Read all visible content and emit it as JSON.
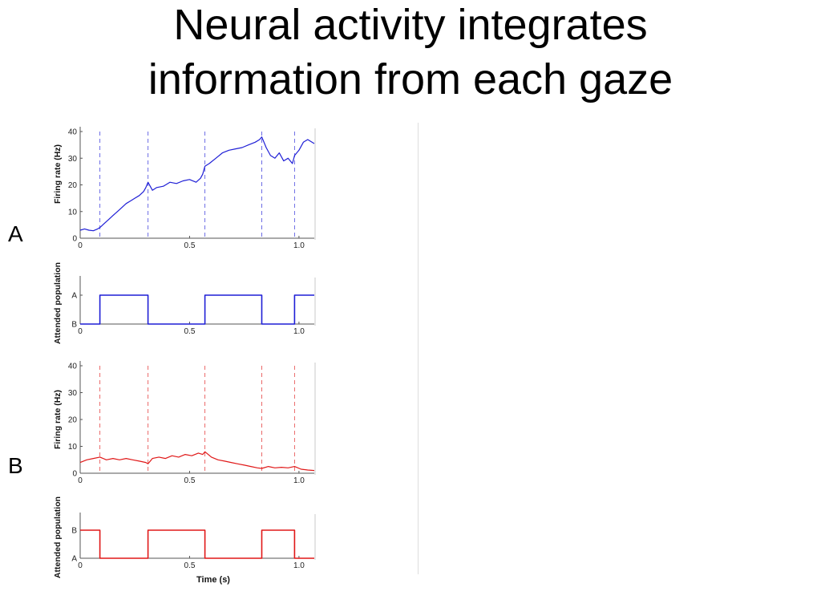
{
  "slide": {
    "title_line1": "Neural activity integrates",
    "title_line2": "information from each gaze",
    "panel_a_label": "A",
    "panel_b_label": "B"
  },
  "chart_data": [
    {
      "id": "A-rate",
      "type": "line",
      "color": "#1f1fd6",
      "xlim": [
        0,
        1.07
      ],
      "ylim": [
        0,
        40
      ],
      "yticks": [
        0,
        10,
        20,
        30,
        40
      ],
      "ytick_labels": [
        "0",
        "10",
        "20",
        "30",
        "40"
      ],
      "xticks": [
        0,
        0.5,
        1.0
      ],
      "xtick_labels": [
        "0",
        "0.5",
        "1.0"
      ],
      "xlabel": "",
      "ylabel": "Firing rate (Hz)",
      "gaze_shifts": [
        0.09,
        0.31,
        0.57,
        0.83,
        0.98
      ],
      "series": [
        {
          "x": [
            0,
            0.02,
            0.04,
            0.06,
            0.08,
            0.09,
            0.11,
            0.13,
            0.15,
            0.17,
            0.19,
            0.21,
            0.23,
            0.25,
            0.27,
            0.29,
            0.3,
            0.31,
            0.33,
            0.35,
            0.38,
            0.41,
            0.44,
            0.47,
            0.5,
            0.53,
            0.55,
            0.56,
            0.57,
            0.59,
            0.62,
            0.65,
            0.68,
            0.71,
            0.74,
            0.77,
            0.8,
            0.82,
            0.83,
            0.85,
            0.87,
            0.89,
            0.91,
            0.93,
            0.95,
            0.97,
            0.98,
            1.0,
            1.02,
            1.04,
            1.07
          ],
          "y": [
            3,
            3.5,
            3,
            2.8,
            3.5,
            4,
            5.5,
            7,
            8.5,
            10,
            11.5,
            13,
            14,
            15,
            16,
            17.5,
            19,
            21,
            18,
            19,
            19.5,
            21,
            20.5,
            21.5,
            22,
            21,
            22.5,
            24,
            27,
            28,
            30,
            32,
            33,
            33.5,
            34,
            35,
            36,
            37,
            38,
            34,
            31,
            30,
            32,
            29,
            30,
            28,
            31,
            33,
            36,
            37,
            35.5
          ]
        }
      ]
    },
    {
      "id": "A-attended",
      "type": "line",
      "color": "#1f1fd6",
      "xlim": [
        0,
        1.07
      ],
      "yticks": [
        0,
        1
      ],
      "ytick_labels": [
        "B",
        "A"
      ],
      "xticks": [
        0,
        0.5,
        1.0
      ],
      "xtick_labels": [
        "0",
        "0.5",
        "1.0"
      ],
      "xlabel": "",
      "ylabel": "Attended population",
      "series": [
        {
          "x": [
            0,
            0.09,
            0.09,
            0.31,
            0.31,
            0.57,
            0.57,
            0.83,
            0.83,
            0.98,
            0.98,
            1.07
          ],
          "y": [
            0,
            0,
            1,
            1,
            0,
            0,
            1,
            1,
            0,
            0,
            1,
            1
          ]
        }
      ]
    },
    {
      "id": "B-rate",
      "type": "line",
      "color": "#e01818",
      "xlim": [
        0,
        1.07
      ],
      "ylim": [
        0,
        40
      ],
      "yticks": [
        0,
        10,
        20,
        30,
        40
      ],
      "ytick_labels": [
        "0",
        "10",
        "20",
        "30",
        "40"
      ],
      "xticks": [
        0,
        0.5,
        1.0
      ],
      "xtick_labels": [
        "0",
        "0.5",
        "1.0"
      ],
      "xlabel": "",
      "ylabel": "Firing rate (Hz)",
      "gaze_shifts": [
        0.09,
        0.31,
        0.57,
        0.83,
        0.98
      ],
      "series": [
        {
          "x": [
            0,
            0.03,
            0.06,
            0.09,
            0.12,
            0.15,
            0.18,
            0.21,
            0.24,
            0.27,
            0.3,
            0.31,
            0.33,
            0.36,
            0.39,
            0.42,
            0.45,
            0.48,
            0.51,
            0.54,
            0.56,
            0.57,
            0.6,
            0.63,
            0.66,
            0.69,
            0.72,
            0.75,
            0.78,
            0.81,
            0.83,
            0.86,
            0.89,
            0.92,
            0.95,
            0.98,
            1.01,
            1.04,
            1.07
          ],
          "y": [
            4,
            5,
            5.5,
            6,
            5,
            5.5,
            5,
            5.5,
            5,
            4.5,
            4,
            3.5,
            5.5,
            6,
            5.5,
            6.5,
            6,
            7,
            6.5,
            7.5,
            7,
            8,
            6,
            5,
            4.5,
            4,
            3.5,
            3,
            2.5,
            2,
            1.8,
            2.5,
            2,
            2.2,
            2,
            2.5,
            1.5,
            1.2,
            1
          ]
        }
      ]
    },
    {
      "id": "B-attended",
      "type": "line",
      "color": "#e01818",
      "xlim": [
        0,
        1.07
      ],
      "yticks": [
        0,
        1
      ],
      "ytick_labels": [
        "A",
        "B"
      ],
      "xticks": [
        0,
        0.5,
        1.0
      ],
      "xtick_labels": [
        "0",
        "0.5",
        "1.0"
      ],
      "xlabel": "Time (s)",
      "ylabel": "Attended population",
      "series": [
        {
          "x": [
            0,
            0.09,
            0.09,
            0.31,
            0.31,
            0.57,
            0.57,
            0.83,
            0.83,
            0.98,
            0.98,
            1.07
          ],
          "y": [
            1,
            1,
            0,
            0,
            1,
            1,
            0,
            0,
            1,
            1,
            0,
            0
          ]
        }
      ]
    }
  ]
}
